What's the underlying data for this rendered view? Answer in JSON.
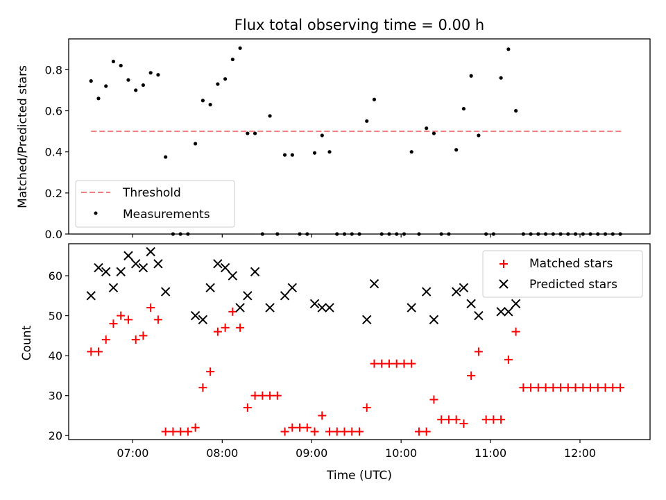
{
  "chart_data": [
    {
      "type": "scatter",
      "title": "Flux total observing time = 0.00 h",
      "xlabel": "",
      "ylabel": "Matched/Predicted stars",
      "xlim": [
        "06:17",
        "12:47"
      ],
      "ylim": [
        0,
        0.95
      ],
      "x_ticks": [
        "07:00",
        "08:00",
        "09:00",
        "10:00",
        "11:00",
        "12:00"
      ],
      "y_ticks": [
        0.0,
        0.2,
        0.4,
        0.6,
        0.8
      ],
      "y_tick_labels": [
        "0.0",
        "0.2",
        "0.4",
        "0.6",
        "0.8"
      ],
      "x_tick_labels_visible": false,
      "grid": false,
      "legend": {
        "position": "lower-left",
        "entries": [
          "Threshold",
          "Measurements"
        ]
      },
      "series": [
        {
          "name": "Threshold",
          "style": "dashed-line",
          "color": "#f08080",
          "x": [
            "06:32",
            "12:29"
          ],
          "values": [
            0.5,
            0.5
          ]
        },
        {
          "name": "Measurements",
          "style": "dot",
          "color": "#000000",
          "x": [
            "06:32",
            "06:37",
            "06:42",
            "06:47",
            "06:52",
            "06:57",
            "07:02",
            "07:07",
            "07:12",
            "07:17",
            "07:22",
            "07:27",
            "07:32",
            "07:37",
            "07:42",
            "07:47",
            "07:52",
            "07:57",
            "08:02",
            "08:07",
            "08:12",
            "08:17",
            "08:22",
            "08:27",
            "08:32",
            "08:37",
            "08:42",
            "08:47",
            "08:52",
            "08:57",
            "09:02",
            "09:07",
            "09:12",
            "09:17",
            "09:22",
            "09:27",
            "09:32",
            "09:37",
            "09:42",
            "09:47",
            "09:52",
            "09:57",
            "10:02",
            "10:07",
            "10:12",
            "10:17",
            "10:22",
            "10:27",
            "10:32",
            "10:37",
            "10:42",
            "10:47",
            "10:52",
            "10:57",
            "11:02",
            "11:07",
            "11:12",
            "11:17",
            "11:22",
            "11:27",
            "11:32",
            "11:37",
            "11:42",
            "11:47",
            "11:52",
            "11:57",
            "12:02",
            "12:07",
            "12:12",
            "12:17",
            "12:22",
            "12:27"
          ],
          "values": [
            0.745,
            0.66,
            0.72,
            0.84,
            0.82,
            0.75,
            0.7,
            0.725,
            0.785,
            0.775,
            0.375,
            0.0,
            0.0,
            0.0,
            0.44,
            0.65,
            0.63,
            0.73,
            0.755,
            0.85,
            0.905,
            0.49,
            0.49,
            0.0,
            0.575,
            0.0,
            0.385,
            0.385,
            0.0,
            0.0,
            0.395,
            0.48,
            0.4,
            0.0,
            0.0,
            0.0,
            0.0,
            0.55,
            0.655,
            0.0,
            0.0,
            0.0,
            0.0,
            0.4,
            0.0,
            0.515,
            0.49,
            0.0,
            0.0,
            0.41,
            0.61,
            0.77,
            0.48,
            0.0,
            0.0,
            0.76,
            0.9,
            0.6,
            0.0,
            0.0,
            0.0,
            0.0,
            0.0,
            0.0,
            0.0,
            0.0,
            0.0,
            0.0,
            0.0,
            0.0,
            0.0,
            0.0
          ]
        }
      ]
    },
    {
      "type": "scatter",
      "title": "",
      "xlabel": "Time (UTC)",
      "ylabel": "Count",
      "xlim": [
        "06:17",
        "12:47"
      ],
      "ylim": [
        19,
        68
      ],
      "x_ticks": [
        "07:00",
        "08:00",
        "09:00",
        "10:00",
        "11:00",
        "12:00"
      ],
      "y_ticks": [
        20,
        30,
        40,
        50,
        60
      ],
      "y_tick_labels": [
        "20",
        "30",
        "40",
        "50",
        "60"
      ],
      "grid": false,
      "legend": {
        "position": "top-right",
        "entries": [
          "Matched stars",
          "Predicted stars"
        ]
      },
      "series": [
        {
          "name": "Matched stars",
          "style": "plus",
          "color": "#ff0000",
          "x": [
            "06:32",
            "06:37",
            "06:42",
            "06:47",
            "06:52",
            "06:57",
            "07:02",
            "07:07",
            "07:12",
            "07:17",
            "07:22",
            "07:27",
            "07:32",
            "07:37",
            "07:42",
            "07:47",
            "07:52",
            "07:57",
            "08:02",
            "08:07",
            "08:12",
            "08:17",
            "08:22",
            "08:27",
            "08:32",
            "08:37",
            "08:42",
            "08:47",
            "08:52",
            "08:57",
            "09:02",
            "09:07",
            "09:12",
            "09:17",
            "09:22",
            "09:27",
            "09:32",
            "09:37",
            "09:42",
            "09:47",
            "09:52",
            "09:57",
            "10:02",
            "10:07",
            "10:12",
            "10:17",
            "10:22",
            "10:27",
            "10:32",
            "10:37",
            "10:42",
            "10:47",
            "10:52",
            "10:57",
            "11:02",
            "11:07",
            "11:12",
            "11:17",
            "11:22",
            "11:27",
            "11:32",
            "11:37",
            "11:42",
            "11:47",
            "11:52",
            "11:57",
            "12:02",
            "12:07",
            "12:12",
            "12:17",
            "12:22",
            "12:27"
          ],
          "values": [
            41,
            41,
            44,
            48,
            50,
            49,
            44,
            45,
            52,
            49,
            21,
            21,
            21,
            21,
            22,
            32,
            36,
            46,
            47,
            51,
            47,
            27,
            30,
            30,
            30,
            30,
            21,
            22,
            22,
            22,
            21,
            25,
            21,
            21,
            21,
            21,
            21,
            27,
            38,
            38,
            38,
            38,
            38,
            38,
            21,
            21,
            29,
            24,
            24,
            24,
            23,
            35,
            41,
            24,
            24,
            24,
            39,
            46,
            32,
            32,
            32,
            32,
            32,
            32,
            32,
            32,
            32,
            32,
            32,
            32,
            32,
            32
          ]
        },
        {
          "name": "Predicted stars",
          "style": "cross",
          "color": "#000000",
          "x": [
            "06:32",
            "06:37",
            "06:42",
            "06:47",
            "06:52",
            "06:57",
            "07:02",
            "07:07",
            "07:12",
            "07:17",
            "07:22",
            "07:42",
            "07:47",
            "07:52",
            "07:57",
            "08:02",
            "08:07",
            "08:12",
            "08:17",
            "08:22",
            "08:32",
            "08:42",
            "08:47",
            "09:02",
            "09:07",
            "09:12",
            "09:37",
            "09:42",
            "10:07",
            "10:17",
            "10:22",
            "10:37",
            "10:42",
            "10:47",
            "10:52",
            "11:07",
            "11:12",
            "11:17"
          ],
          "values": [
            55,
            62,
            61,
            57,
            61,
            65,
            63,
            62,
            66,
            63,
            56,
            50,
            49,
            57,
            63,
            62,
            60,
            52,
            55,
            61,
            52,
            55,
            57,
            53,
            52,
            52,
            49,
            58,
            52,
            56,
            49,
            56,
            57,
            53,
            50,
            51,
            51,
            53
          ]
        }
      ]
    }
  ]
}
